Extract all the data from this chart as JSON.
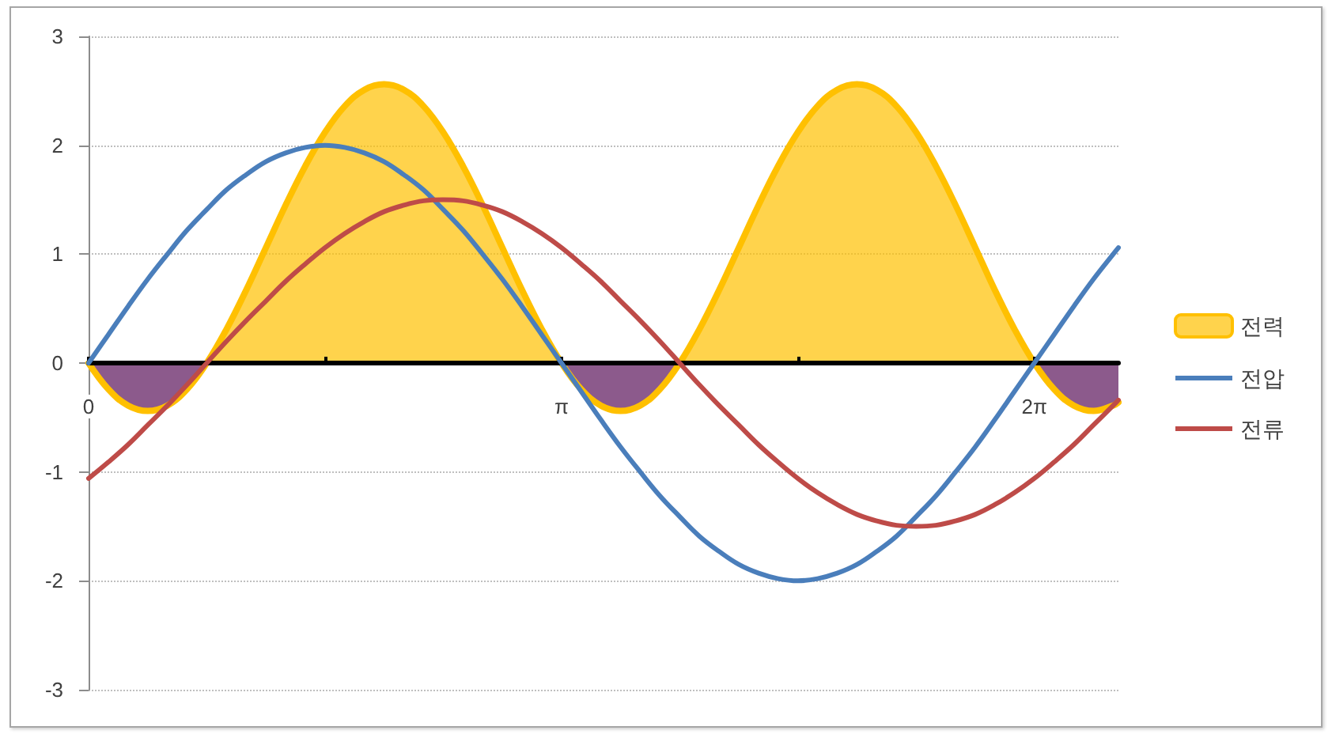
{
  "chart_data": {
    "type": "line",
    "x": [
      0,
      0.131,
      0.262,
      0.393,
      0.524,
      0.654,
      0.785,
      0.916,
      1.047,
      1.178,
      1.309,
      1.44,
      1.571,
      1.702,
      1.833,
      1.963,
      2.094,
      2.225,
      2.356,
      2.487,
      2.618,
      2.749,
      2.88,
      3.011,
      3.142,
      3.272,
      3.403,
      3.534,
      3.665,
      3.796,
      3.927,
      4.058,
      4.189,
      4.32,
      4.451,
      4.581,
      4.712,
      4.843,
      4.974,
      5.105,
      5.236,
      5.367,
      5.498,
      5.629,
      5.76,
      5.891,
      6.021,
      6.152,
      6.283,
      6.414,
      6.545,
      6.676,
      6.807,
      6.842
    ],
    "xlim": [
      0,
      6.842
    ],
    "xticks": [
      0,
      {
        "value": 1.571,
        "label": null
      },
      {
        "value": 3.142,
        "label": "π"
      },
      {
        "value": 4.712,
        "label": null
      },
      {
        "value": 6.283,
        "label": "2π"
      }
    ],
    "ylim": [
      -3,
      3
    ],
    "yticks": [
      -3,
      -2,
      -1,
      0,
      1,
      2,
      3
    ],
    "grid": "y",
    "legend": "right",
    "marker": "none",
    "series": [
      {
        "name": "전력",
        "type": "area",
        "color": "#ffc000",
        "values": [
          0,
          -0.24,
          -0.39,
          -0.44,
          -0.39,
          -0.24,
          0,
          0.31,
          0.67,
          1.06,
          1.45,
          1.81,
          2.12,
          2.36,
          2.51,
          2.56,
          2.51,
          2.36,
          2.12,
          1.81,
          1.45,
          1.06,
          0.67,
          0.31,
          0,
          -0.24,
          -0.39,
          -0.44,
          -0.39,
          -0.24,
          0,
          0.31,
          0.67,
          1.06,
          1.45,
          1.81,
          2.12,
          2.36,
          2.51,
          2.56,
          2.51,
          2.36,
          2.12,
          1.81,
          1.45,
          1.06,
          0.67,
          0.31,
          0,
          -0.24,
          -0.39,
          -0.44,
          -0.39,
          -0.36
        ]
      },
      {
        "type": "area",
        "color": "#8c5a8c",
        "line_style": "none",
        "values": [
          0,
          -0.24,
          -0.39,
          -0.44,
          -0.39,
          -0.24,
          0,
          null,
          null,
          null,
          null,
          null,
          null,
          null,
          null,
          null,
          null,
          null,
          null,
          null,
          null,
          null,
          null,
          null,
          0,
          -0.24,
          -0.39,
          -0.44,
          -0.39,
          -0.24,
          0,
          null,
          null,
          null,
          null,
          null,
          null,
          null,
          null,
          null,
          null,
          null,
          null,
          null,
          null,
          null,
          null,
          null,
          0,
          -0.24,
          -0.39,
          -0.44,
          -0.39,
          -0.36
        ]
      },
      {
        "name": "전압",
        "color": "#4a7ebb",
        "values": [
          0,
          0.26,
          0.52,
          0.77,
          1,
          1.22,
          1.41,
          1.59,
          1.73,
          1.85,
          1.93,
          1.98,
          2,
          1.98,
          1.93,
          1.85,
          1.73,
          1.59,
          1.41,
          1.22,
          1,
          0.77,
          0.52,
          0.26,
          0,
          -0.26,
          -0.52,
          -0.77,
          -1,
          -1.22,
          -1.41,
          -1.59,
          -1.73,
          -1.85,
          -1.93,
          -1.98,
          -2,
          -1.98,
          -1.93,
          -1.85,
          -1.73,
          -1.59,
          -1.41,
          -1.22,
          -1,
          -0.77,
          -0.52,
          -0.26,
          0,
          0.26,
          0.52,
          0.77,
          1,
          1.06
        ]
      },
      {
        "name": "전류",
        "color": "#be4b48",
        "values": [
          -1.06,
          -0.91,
          -0.75,
          -0.57,
          -0.39,
          -0.2,
          0,
          0.2,
          0.39,
          0.57,
          0.75,
          0.91,
          1.06,
          1.19,
          1.3,
          1.39,
          1.45,
          1.49,
          1.5,
          1.49,
          1.45,
          1.39,
          1.3,
          1.19,
          1.06,
          0.91,
          0.75,
          0.57,
          0.39,
          0.2,
          0,
          -0.2,
          -0.39,
          -0.57,
          -0.75,
          -0.91,
          -1.06,
          -1.19,
          -1.3,
          -1.39,
          -1.45,
          -1.49,
          -1.5,
          -1.49,
          -1.45,
          -1.39,
          -1.3,
          -1.19,
          -1.06,
          -0.91,
          -0.75,
          -0.57,
          -0.39,
          -0.34
        ]
      }
    ]
  }
}
